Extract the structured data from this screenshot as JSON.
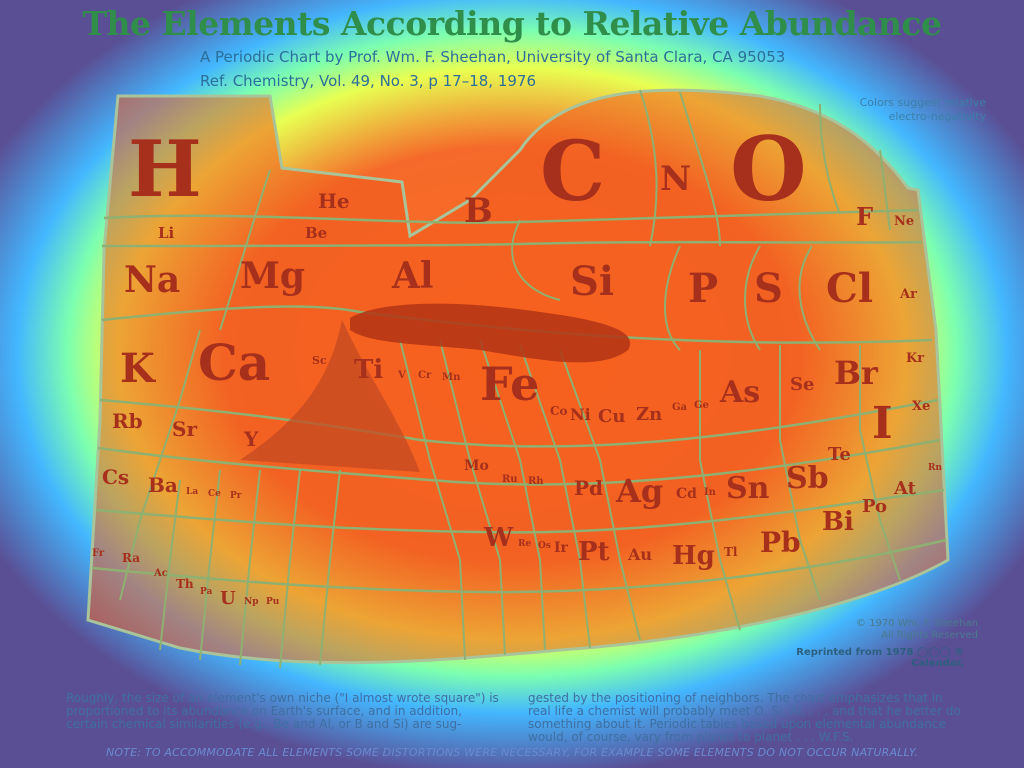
{
  "title": "The Elements According to Relative Abundance",
  "subtitle_line1": "A Periodic Chart by Prof. Wm. F. Sheehan, University of Santa Clara, CA 95053",
  "subtitle_line2": "Ref. Chemistry, Vol. 49, No. 3, p 17–18, 1976",
  "colors_note": "Colors suggest relative electro-negativity",
  "copyright_line1": "© 1970 Wm. F. Sheehan",
  "copyright_line2": "All Rights Reserved",
  "reprinted": "Reprinted from 1978 ◯◯◯ ® Calendar.",
  "body_left": "Roughly, the size of an element's own niche (\"I almost wrote square\") is proportioned to its abundance on Earth's surface, and in addition, certain chemical similarities (e.g., Be and Al, or B and Si) are sug-",
  "body_right": "gested by the positioning of neighbors. The chart emphasizes that in real life a chemist will probably meet O, Si, Al, . . . and that he better do something about it. Periodic tables based upon elemental abundance would, of course, vary from planet to planet . . . W.F.S.",
  "note": "NOTE: TO ACCOMMODATE ALL ELEMENTS SOME DISTORTIONS WERE NECESSARY, FOR EXAMPLE SOME ELEMENTS DO NOT OCCUR NATURALLY.",
  "elements": {
    "H": "H",
    "He": "He",
    "Li": "Li",
    "Be": "Be",
    "B": "B",
    "C": "C",
    "N": "N",
    "O": "O",
    "F": "F",
    "Ne": "Ne",
    "Na": "Na",
    "Mg": "Mg",
    "Al": "Al",
    "Si": "Si",
    "P": "P",
    "S": "S",
    "Cl": "Cl",
    "Ar": "Ar",
    "K": "K",
    "Ca": "Ca",
    "Sc": "Sc",
    "Ti": "Ti",
    "V": "V",
    "Cr": "Cr",
    "Mn": "Mn",
    "Fe": "Fe",
    "Co": "Co",
    "Ni": "Ni",
    "Cu": "Cu",
    "Zn": "Zn",
    "Ga": "Ga",
    "Ge": "Ge",
    "As": "As",
    "Se": "Se",
    "Br": "Br",
    "Kr": "Kr",
    "Rb": "Rb",
    "Sr": "Sr",
    "Y": "Y",
    "Mo": "Mo",
    "Ru": "Ru",
    "Rh": "Rh",
    "Pd": "Pd",
    "Ag": "Ag",
    "Cd": "Cd",
    "In": "In",
    "Sn": "Sn",
    "Sb": "Sb",
    "Te": "Te",
    "I": "I",
    "Xe": "Xe",
    "Cs": "Cs",
    "Ba": "Ba",
    "La": "La",
    "Ce": "Ce",
    "Pr": "Pr",
    "W": "W",
    "Re": "Re",
    "Os": "Os",
    "Ir": "Ir",
    "Pt": "Pt",
    "Au": "Au",
    "Hg": "Hg",
    "Tl": "Tl",
    "Pb": "Pb",
    "Bi": "Bi",
    "Po": "Po",
    "At": "At",
    "Rn": "Rn",
    "Fr": "Fr",
    "Ra": "Ra",
    "Ac": "Ac",
    "Th": "Th",
    "Pa": "Pa",
    "U": "U",
    "Np": "Np",
    "Pu": "Pu"
  },
  "colors": {
    "chart_fill": "#f06a2a",
    "grid_line": "#a9c49a",
    "symbol": "#a6301c",
    "title": "#2f8f4a"
  }
}
